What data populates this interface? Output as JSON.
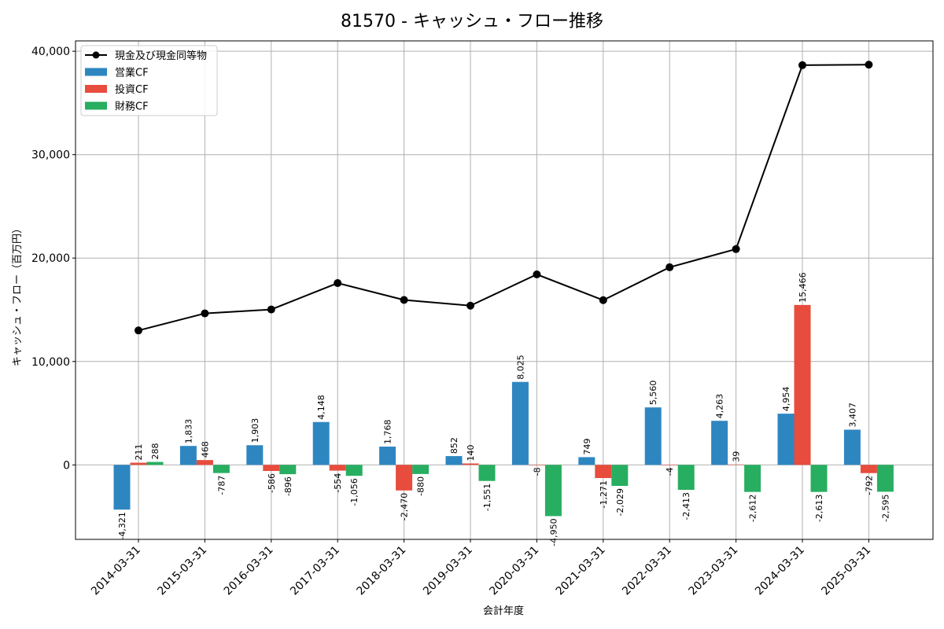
{
  "chart_data": {
    "type": "bar+line",
    "title": "81570 - キャッシュ・フロー推移",
    "xlabel": "会計年度",
    "ylabel": "キャッシュ・フロー（百万円）",
    "ylim": [
      -7200,
      41000
    ],
    "yticks": [
      0,
      10000,
      20000,
      30000,
      40000
    ],
    "ytick_labels": [
      "0",
      "10,000",
      "20,000",
      "30,000",
      "40,000"
    ],
    "grid": true,
    "legend_position": "top-left",
    "categories": [
      "2014-03-31",
      "2015-03-31",
      "2016-03-31",
      "2017-03-31",
      "2018-03-31",
      "2019-03-31",
      "2020-03-31",
      "2021-03-31",
      "2022-03-31",
      "2023-03-31",
      "2024-03-31",
      "2025-03-31"
    ],
    "series": [
      {
        "name": "営業CF",
        "kind": "bar",
        "color": "#2e86c1",
        "values": [
          -4321,
          1833,
          1903,
          4148,
          1768,
          852,
          8025,
          749,
          5560,
          4263,
          4954,
          3407
        ],
        "labels": [
          "-4,321",
          "1,833",
          "1,903",
          "4,148",
          "1,768",
          "852",
          "8,025",
          "749",
          "5,560",
          "4,263",
          "4,954",
          "3,407"
        ]
      },
      {
        "name": "投資CF",
        "kind": "bar",
        "color": "#e74c3c",
        "values": [
          211,
          468,
          -586,
          -554,
          -2470,
          140,
          -8,
          -1271,
          -4,
          39,
          15466,
          -792
        ],
        "labels": [
          "211",
          "468",
          "-586",
          "-554",
          "-2,470",
          "140",
          "-8",
          "-1,271",
          "-4",
          "39",
          "15,466",
          "-792"
        ]
      },
      {
        "name": "財務CF",
        "kind": "bar",
        "color": "#27ae60",
        "values": [
          288,
          -787,
          -896,
          -1056,
          -880,
          -1551,
          -4950,
          -2029,
          -2413,
          -2612,
          -2613,
          -2595
        ],
        "labels": [
          "288",
          "-787",
          "-896",
          "-1,056",
          "-880",
          "-1,551",
          "-4,950",
          "-2,029",
          "-2,413",
          "-2,612",
          "-2,613",
          "-2,595"
        ]
      },
      {
        "name": "現金及び現金同等物",
        "kind": "line",
        "color": "#000000",
        "values": [
          13000,
          14650,
          15030,
          17580,
          15950,
          15400,
          18420,
          15930,
          19110,
          20870,
          38650,
          38700
        ]
      }
    ]
  }
}
